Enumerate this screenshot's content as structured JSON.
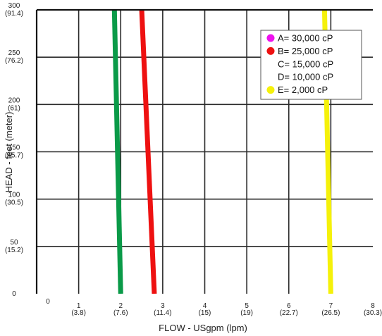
{
  "chart_data": {
    "type": "line",
    "title": "",
    "xlabel": "FLOW - USgpm (lpm)",
    "ylabel": "HEAD - feet (meter)",
    "xlim": [
      0,
      8
    ],
    "ylim": [
      0,
      300
    ],
    "grid": true,
    "legend_position": "top-right",
    "x_ticks": [
      {
        "value": 0,
        "label": "0",
        "sub": ""
      },
      {
        "value": 1,
        "label": "1",
        "sub": "(3.8)"
      },
      {
        "value": 2,
        "label": "2",
        "sub": "(7.6)"
      },
      {
        "value": 3,
        "label": "3",
        "sub": "(11.4)"
      },
      {
        "value": 4,
        "label": "4",
        "sub": "(15)"
      },
      {
        "value": 5,
        "label": "5",
        "sub": "(19)"
      },
      {
        "value": 6,
        "label": "6",
        "sub": "(22.7)"
      },
      {
        "value": 7,
        "label": "7",
        "sub": "(26.5)"
      },
      {
        "value": 8,
        "label": "8",
        "sub": "(30.3)"
      }
    ],
    "y_ticks": [
      {
        "value": 0,
        "label": "0",
        "sub": ""
      },
      {
        "value": 50,
        "label": "50",
        "sub": "(15.2)"
      },
      {
        "value": 100,
        "label": "100",
        "sub": "(30.5)"
      },
      {
        "value": 150,
        "label": "150",
        "sub": "(45.7)"
      },
      {
        "value": 200,
        "label": "200",
        "sub": "(61)"
      },
      {
        "value": 250,
        "label": "250",
        "sub": "(76.2)"
      },
      {
        "value": 300,
        "label": "300",
        "sub": "(91.4)"
      }
    ],
    "series": [
      {
        "color": "#0a9a48",
        "x": [
          1.85,
          2.0
        ],
        "y": [
          300,
          0
        ]
      },
      {
        "color": "#ee1111",
        "x": [
          2.5,
          2.8
        ],
        "y": [
          300,
          0
        ]
      },
      {
        "color": "#f5f10a",
        "x": [
          6.85,
          7.0
        ],
        "y": [
          300,
          0
        ]
      }
    ],
    "legend": [
      {
        "label": "A= 30,000 cP",
        "color": "#ee11ee"
      },
      {
        "label": "B= 25,000 cP",
        "color": "#ee1111"
      },
      {
        "label": "C= 15,000 cP",
        "color": "#ffffff"
      },
      {
        "label": "D= 10,000 cP",
        "color": "#ffffff"
      },
      {
        "label": "E= 2,000 cP",
        "color": "#f5f10a"
      }
    ]
  }
}
